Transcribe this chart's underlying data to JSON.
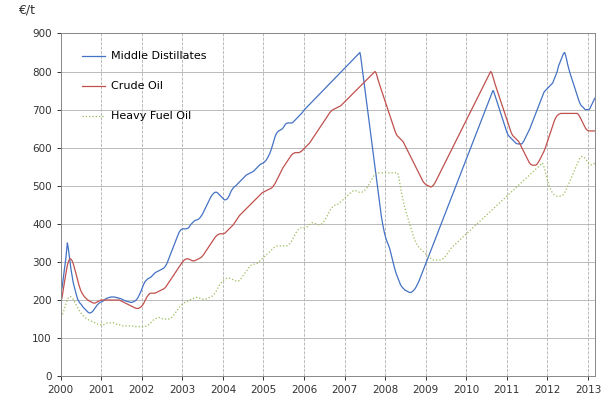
{
  "title": "€/t",
  "xlim": [
    2000.0,
    2013.17
  ],
  "ylim": [
    0,
    900
  ],
  "yticks": [
    0,
    100,
    200,
    300,
    400,
    500,
    600,
    700,
    800,
    900
  ],
  "xticks": [
    2000,
    2001,
    2002,
    2003,
    2004,
    2005,
    2006,
    2007,
    2008,
    2009,
    2010,
    2011,
    2012,
    2013
  ],
  "grid_color": "#b0b0b0",
  "background_color": "#ffffff",
  "line_colors": {
    "middle_distillates": "#4472c4",
    "crude_oil": "#c0504d",
    "heavy_fuel_oil": "#9bbb59"
  },
  "legend_labels": [
    "Middle Distillates",
    "Crude Oil",
    "Heavy Fuel Oil"
  ],
  "legend_labelspacing": 1.8,
  "md_v": [
    220,
    225,
    235,
    250,
    265,
    280,
    295,
    310,
    330,
    350,
    340,
    325,
    310,
    295,
    280,
    268,
    255,
    245,
    238,
    230,
    222,
    215,
    208,
    202,
    198,
    195,
    192,
    190,
    188,
    185,
    182,
    180,
    178,
    176,
    174,
    172,
    170,
    168,
    167,
    166,
    166,
    167,
    168,
    170,
    172,
    175,
    178,
    180,
    183,
    186,
    188,
    190,
    192,
    193,
    194,
    195,
    196,
    197,
    198,
    200,
    202,
    203,
    204,
    205,
    206,
    206,
    207,
    207,
    208,
    208,
    208,
    208,
    208,
    208,
    207,
    207,
    206,
    206,
    205,
    205,
    204,
    204,
    203,
    202,
    201,
    200,
    199,
    198,
    198,
    197,
    196,
    196,
    195,
    195,
    194,
    194,
    194,
    194,
    195,
    196,
    197,
    198,
    200,
    202,
    205,
    208,
    212,
    216,
    220,
    225,
    230,
    235,
    240,
    244,
    248,
    250,
    252,
    254,
    256,
    257,
    258,
    259,
    260,
    262,
    264,
    266,
    268,
    270,
    272,
    273,
    274,
    275,
    276,
    277,
    278,
    279,
    280,
    281,
    282,
    283,
    285,
    287,
    290,
    293,
    297,
    302,
    307,
    312,
    317,
    322,
    327,
    332,
    337,
    342,
    347,
    352,
    357,
    362,
    367,
    372,
    377,
    380,
    383,
    385,
    386,
    387,
    387,
    387,
    387,
    387,
    387,
    388,
    388,
    390,
    392,
    395,
    398,
    400,
    402,
    404,
    406,
    408,
    409,
    410,
    410,
    411,
    412,
    413,
    415,
    417,
    420,
    423,
    426,
    430,
    434,
    438,
    442,
    446,
    450,
    454,
    458,
    462,
    466,
    470,
    473,
    476,
    478,
    480,
    482,
    483,
    483,
    483,
    482,
    480,
    478,
    476,
    474,
    472,
    470,
    468,
    466,
    464,
    463,
    463,
    464,
    465,
    467,
    470,
    474,
    478,
    483,
    487,
    490,
    493,
    495,
    497,
    499,
    500,
    502,
    504,
    506,
    508,
    510,
    512,
    514,
    516,
    518,
    520,
    522,
    524,
    526,
    528,
    529,
    530,
    531,
    532,
    533,
    534,
    535,
    536,
    537,
    538,
    540,
    542,
    544,
    546,
    548,
    550,
    552,
    554,
    556,
    557,
    558,
    559,
    560,
    561,
    563,
    565,
    567,
    570,
    573,
    577,
    581,
    585,
    590,
    596,
    602,
    608,
    615,
    622,
    628,
    633,
    637,
    640,
    642,
    644,
    645,
    646,
    647,
    648,
    650,
    652,
    655,
    658,
    661,
    663,
    664,
    665,
    665,
    665,
    665,
    665,
    665,
    665,
    666,
    668,
    670,
    672,
    674,
    676,
    678,
    680,
    682,
    684,
    686,
    688,
    690,
    692,
    695,
    698,
    700,
    702,
    704,
    706,
    708,
    710,
    712,
    714,
    716,
    718,
    720,
    722,
    724,
    726,
    728,
    730,
    732,
    734,
    736,
    738,
    740,
    742,
    744,
    746,
    748,
    750,
    752,
    754,
    756,
    758,
    760,
    762,
    764,
    766,
    768,
    770,
    772,
    774,
    776,
    778,
    780,
    782,
    784,
    786,
    788,
    790,
    792,
    794,
    796,
    798,
    800,
    802,
    804,
    806,
    808,
    810,
    812,
    814,
    816,
    818,
    820,
    822,
    824,
    826,
    828,
    830,
    832,
    834,
    836,
    838,
    840,
    842,
    844,
    846,
    848,
    850,
    840,
    825,
    810,
    795,
    780,
    765,
    750,
    735,
    720,
    705,
    690,
    675,
    660,
    645,
    630,
    615,
    600,
    585,
    570,
    555,
    540,
    525,
    510,
    495,
    480,
    465,
    450,
    435,
    420,
    408,
    397,
    387,
    378,
    370,
    363,
    357,
    352,
    347,
    342,
    337,
    330,
    322,
    314,
    306,
    298,
    290,
    283,
    276,
    270,
    265,
    260,
    255,
    250,
    245,
    240,
    237,
    234,
    232,
    230,
    228,
    226,
    225,
    224,
    223,
    222,
    221,
    220,
    220,
    220,
    221,
    222,
    224,
    226,
    228,
    231,
    234,
    238,
    242,
    246,
    250,
    255,
    260,
    265,
    270,
    275,
    280,
    285,
    290,
    295,
    300,
    305,
    310,
    315,
    320,
    325,
    330,
    335,
    340,
    345,
    350,
    355,
    360,
    365,
    370,
    375,
    380,
    385,
    390,
    395,
    400,
    405,
    410,
    415,
    420,
    425,
    430,
    435,
    440,
    445,
    450,
    455,
    460,
    465,
    470,
    475,
    480,
    485,
    490,
    495,
    500,
    505,
    510,
    515,
    520,
    525,
    530,
    535,
    540,
    545,
    550,
    555,
    560,
    565,
    570,
    575,
    580,
    585,
    590,
    595,
    600,
    605,
    610,
    615,
    620,
    625,
    630,
    635,
    640,
    645,
    650,
    655,
    660,
    665,
    670,
    675,
    680,
    685,
    690,
    695,
    700,
    705,
    710,
    715,
    720,
    725,
    730,
    735,
    740,
    745,
    750,
    748,
    742,
    736,
    730,
    724,
    718,
    712,
    706,
    700,
    694,
    688,
    682,
    676,
    670,
    664,
    658,
    652,
    646,
    640,
    636,
    632,
    630,
    628,
    626,
    624,
    622,
    620,
    618,
    616,
    614,
    612,
    611,
    610,
    610,
    610,
    610,
    610,
    610,
    610,
    612,
    615,
    618,
    622,
    626,
    630,
    634,
    638,
    642,
    646,
    650,
    655,
    660,
    665,
    670,
    675,
    680,
    685,
    690,
    695,
    700,
    705,
    710,
    715,
    720,
    725,
    730,
    735,
    740,
    745,
    748,
    750,
    752,
    754,
    756,
    758,
    760,
    762,
    764,
    766,
    768,
    770,
    775,
    780,
    785,
    790,
    795,
    800,
    808,
    816,
    820,
    825,
    830,
    835,
    840,
    845,
    848,
    850,
    845,
    838,
    830,
    820,
    812,
    805,
    798,
    792,
    786,
    780,
    774,
    768,
    762,
    756,
    750,
    744,
    738,
    732,
    726,
    720,
    716,
    712,
    710,
    708,
    706,
    704,
    702,
    700,
    700,
    700,
    700,
    700,
    700,
    702,
    706,
    710,
    714,
    718,
    722,
    726,
    730
  ],
  "co_v": [
    195,
    200,
    210,
    222,
    235,
    248,
    260,
    272,
    283,
    293,
    300,
    305,
    308,
    308,
    306,
    303,
    298,
    292,
    285,
    278,
    270,
    262,
    254,
    246,
    239,
    233,
    227,
    222,
    218,
    215,
    212,
    209,
    207,
    205,
    203,
    201,
    200,
    198,
    197,
    196,
    195,
    194,
    193,
    192,
    192,
    192,
    193,
    194,
    195,
    196,
    197,
    198,
    199,
    200,
    200,
    200,
    200,
    200,
    200,
    200,
    200,
    200,
    200,
    200,
    200,
    200,
    200,
    200,
    200,
    200,
    200,
    200,
    200,
    200,
    200,
    200,
    200,
    200,
    199,
    198,
    197,
    196,
    195,
    194,
    193,
    192,
    191,
    190,
    189,
    188,
    187,
    186,
    185,
    184,
    183,
    182,
    181,
    180,
    179,
    178,
    178,
    178,
    178,
    179,
    180,
    181,
    183,
    185,
    188,
    191,
    195,
    199,
    203,
    207,
    210,
    213,
    215,
    217,
    218,
    218,
    218,
    218,
    218,
    218,
    218,
    219,
    220,
    221,
    222,
    223,
    224,
    225,
    226,
    227,
    228,
    229,
    230,
    232,
    234,
    237,
    240,
    243,
    246,
    249,
    252,
    255,
    258,
    261,
    264,
    267,
    270,
    273,
    276,
    279,
    282,
    285,
    288,
    291,
    294,
    297,
    300,
    302,
    304,
    306,
    307,
    308,
    308,
    308,
    308,
    307,
    306,
    305,
    304,
    303,
    303,
    303,
    303,
    304,
    305,
    306,
    307,
    308,
    309,
    310,
    311,
    313,
    315,
    317,
    320,
    323,
    326,
    329,
    332,
    335,
    338,
    341,
    344,
    347,
    350,
    353,
    356,
    359,
    362,
    365,
    367,
    369,
    371,
    372,
    373,
    374,
    374,
    374,
    374,
    374,
    374,
    375,
    376,
    378,
    380,
    382,
    384,
    386,
    388,
    390,
    392,
    394,
    396,
    398,
    401,
    404,
    407,
    410,
    413,
    416,
    419,
    422,
    424,
    426,
    428,
    430,
    432,
    434,
    436,
    438,
    440,
    442,
    444,
    446,
    448,
    450,
    452,
    454,
    456,
    458,
    460,
    462,
    464,
    466,
    468,
    470,
    472,
    474,
    476,
    478,
    480,
    482,
    483,
    484,
    485,
    486,
    487,
    488,
    489,
    490,
    491,
    492,
    493,
    494,
    496,
    498,
    501,
    504,
    507,
    511,
    515,
    519,
    523,
    527,
    531,
    535,
    539,
    543,
    547,
    550,
    553,
    556,
    559,
    562,
    565,
    568,
    571,
    574,
    577,
    580,
    582,
    584,
    585,
    586,
    587,
    587,
    587,
    587,
    587,
    587,
    588,
    589,
    590,
    592,
    594,
    596,
    598,
    600,
    602,
    604,
    606,
    608,
    610,
    612,
    615,
    618,
    621,
    624,
    627,
    630,
    633,
    636,
    639,
    642,
    645,
    648,
    651,
    654,
    657,
    660,
    663,
    666,
    669,
    672,
    675,
    678,
    681,
    684,
    687,
    690,
    693,
    695,
    697,
    699,
    700,
    701,
    702,
    703,
    704,
    705,
    706,
    707,
    708,
    709,
    710,
    712,
    714,
    716,
    718,
    720,
    722,
    724,
    726,
    728,
    730,
    732,
    734,
    736,
    738,
    740,
    742,
    744,
    746,
    748,
    750,
    752,
    754,
    756,
    758,
    760,
    762,
    764,
    766,
    768,
    770,
    772,
    774,
    776,
    778,
    780,
    782,
    784,
    786,
    788,
    790,
    792,
    794,
    796,
    798,
    800,
    798,
    793,
    786,
    779,
    772,
    766,
    760,
    754,
    748,
    742,
    736,
    730,
    724,
    718,
    712,
    706,
    700,
    694,
    688,
    682,
    676,
    670,
    664,
    658,
    652,
    646,
    640,
    636,
    632,
    630,
    628,
    626,
    624,
    622,
    620,
    618,
    616,
    612,
    608,
    604,
    600,
    596,
    592,
    588,
    584,
    580,
    576,
    572,
    568,
    564,
    560,
    556,
    552,
    548,
    544,
    540,
    536,
    532,
    528,
    524,
    520,
    516,
    512,
    509,
    507,
    505,
    503,
    502,
    501,
    500,
    499,
    498,
    497,
    497,
    498,
    500,
    502,
    505,
    508,
    512,
    516,
    520,
    524,
    528,
    532,
    536,
    540,
    544,
    548,
    552,
    556,
    560,
    564,
    568,
    572,
    576,
    580,
    584,
    588,
    592,
    596,
    600,
    604,
    608,
    612,
    616,
    620,
    624,
    628,
    632,
    636,
    640,
    644,
    648,
    652,
    656,
    660,
    664,
    668,
    672,
    676,
    680,
    684,
    688,
    692,
    696,
    700,
    704,
    708,
    712,
    716,
    720,
    724,
    728,
    732,
    736,
    740,
    744,
    748,
    752,
    756,
    760,
    764,
    768,
    772,
    776,
    780,
    784,
    788,
    792,
    796,
    800,
    798,
    793,
    786,
    779,
    772,
    766,
    760,
    754,
    748,
    742,
    736,
    730,
    724,
    718,
    712,
    706,
    700,
    694,
    688,
    682,
    676,
    670,
    664,
    658,
    652,
    646,
    640,
    636,
    632,
    630,
    628,
    626,
    624,
    622,
    620,
    618,
    616,
    612,
    608,
    604,
    600,
    596,
    592,
    588,
    584,
    580,
    576,
    572,
    568,
    564,
    560,
    558,
    556,
    555,
    554,
    554,
    554,
    554,
    554,
    555,
    557,
    560,
    563,
    566,
    570,
    574,
    578,
    582,
    586,
    590,
    595,
    600,
    606,
    612,
    618,
    624,
    630,
    636,
    642,
    648,
    654,
    660,
    666,
    672,
    676,
    680,
    683,
    685,
    687,
    688,
    689,
    690,
    690,
    690,
    690,
    690,
    690,
    690,
    690,
    690,
    690,
    690,
    690,
    690,
    690,
    690,
    690,
    690,
    690,
    690,
    690,
    690,
    690,
    690,
    688,
    685,
    682,
    678,
    674,
    670,
    666,
    662,
    658,
    654,
    650,
    648,
    646,
    645,
    644,
    644,
    644,
    644,
    644,
    644,
    644,
    644,
    644
  ],
  "hfo_v": [
    155,
    158,
    162,
    167,
    173,
    180,
    187,
    194,
    200,
    205,
    208,
    209,
    209,
    208,
    206,
    203,
    199,
    195,
    191,
    187,
    183,
    179,
    175,
    171,
    168,
    165,
    162,
    160,
    158,
    156,
    154,
    152,
    150,
    149,
    148,
    147,
    146,
    145,
    144,
    143,
    142,
    141,
    140,
    139,
    138,
    137,
    136,
    135,
    135,
    135,
    135,
    135,
    135,
    136,
    137,
    138,
    139,
    140,
    140,
    140,
    140,
    140,
    140,
    140,
    140,
    140,
    139,
    138,
    137,
    136,
    135,
    135,
    135,
    134,
    133,
    132,
    132,
    132,
    132,
    132,
    132,
    132,
    132,
    132,
    132,
    132,
    132,
    132,
    132,
    131,
    130,
    130,
    130,
    130,
    130,
    130,
    130,
    130,
    130,
    130,
    130,
    130,
    130,
    130,
    131,
    132,
    133,
    134,
    136,
    138,
    140,
    142,
    145,
    147,
    149,
    150,
    151,
    152,
    153,
    154,
    154,
    154,
    153,
    152,
    151,
    150,
    150,
    150,
    150,
    150,
    150,
    150,
    150,
    151,
    152,
    153,
    155,
    157,
    160,
    163,
    166,
    169,
    172,
    175,
    178,
    181,
    184,
    186,
    188,
    190,
    192,
    193,
    194,
    195,
    196,
    197,
    198,
    199,
    200,
    201,
    202,
    203,
    204,
    205,
    206,
    207,
    207,
    207,
    207,
    206,
    205,
    204,
    203,
    202,
    202,
    202,
    202,
    202,
    203,
    204,
    205,
    206,
    207,
    208,
    209,
    210,
    212,
    214,
    217,
    220,
    223,
    227,
    231,
    235,
    239,
    242,
    245,
    248,
    250,
    252,
    254,
    255,
    256,
    257,
    258,
    258,
    258,
    257,
    256,
    255,
    254,
    253,
    252,
    251,
    250,
    250,
    250,
    250,
    251,
    253,
    255,
    258,
    261,
    264,
    267,
    270,
    273,
    276,
    279,
    282,
    285,
    288,
    290,
    292,
    293,
    294,
    294,
    294,
    294,
    295,
    296,
    298,
    300,
    302,
    304,
    306,
    308,
    310,
    312,
    314,
    316,
    318,
    320,
    322,
    324,
    326,
    328,
    330,
    332,
    334,
    336,
    338,
    340,
    341,
    342,
    342,
    342,
    342,
    342,
    342,
    342,
    342,
    342,
    342,
    342,
    342,
    342,
    343,
    344,
    346,
    348,
    351,
    354,
    358,
    362,
    366,
    370,
    374,
    378,
    381,
    384,
    386,
    388,
    389,
    390,
    390,
    390,
    390,
    390,
    390,
    391,
    392,
    394,
    396,
    398,
    400,
    402,
    403,
    403,
    403,
    402,
    401,
    400,
    399,
    398,
    398,
    398,
    398,
    399,
    400,
    402,
    404,
    407,
    410,
    414,
    418,
    422,
    426,
    430,
    434,
    438,
    441,
    444,
    446,
    448,
    449,
    450,
    450,
    451,
    452,
    453,
    455,
    457,
    459,
    461,
    463,
    465,
    467,
    469,
    471,
    473,
    475,
    477,
    479,
    481,
    483,
    485,
    486,
    487,
    487,
    487,
    487,
    486,
    485,
    484,
    483,
    483,
    483,
    483,
    484,
    485,
    487,
    489,
    491,
    494,
    497,
    500,
    504,
    508,
    512,
    516,
    520,
    524,
    527,
    530,
    532,
    533,
    534,
    534,
    534,
    534,
    534,
    534,
    534,
    534,
    534,
    534,
    534,
    534,
    534,
    534,
    534,
    534,
    534,
    534,
    534,
    534,
    534,
    534,
    534,
    534,
    534,
    534,
    525,
    513,
    501,
    489,
    478,
    467,
    457,
    448,
    440,
    432,
    425,
    418,
    411,
    404,
    397,
    390,
    383,
    376,
    369,
    363,
    357,
    352,
    348,
    344,
    341,
    338,
    336,
    334,
    332,
    330,
    328,
    326,
    324,
    322,
    320,
    318,
    316,
    314,
    312,
    310,
    308,
    307,
    306,
    305,
    305,
    305,
    305,
    305,
    305,
    305,
    305,
    305,
    306,
    307,
    308,
    310,
    312,
    314,
    317,
    320,
    323,
    326,
    329,
    332,
    335,
    338,
    340,
    342,
    344,
    346,
    348,
    350,
    352,
    354,
    356,
    358,
    360,
    362,
    364,
    366,
    368,
    370,
    372,
    374,
    376,
    378,
    380,
    382,
    384,
    386,
    388,
    390,
    392,
    394,
    396,
    398,
    400,
    402,
    404,
    406,
    408,
    410,
    412,
    414,
    416,
    418,
    420,
    422,
    424,
    426,
    428,
    430,
    432,
    434,
    436,
    438,
    440,
    442,
    444,
    446,
    448,
    450,
    452,
    454,
    456,
    458,
    460,
    462,
    464,
    466,
    468,
    470,
    472,
    474,
    476,
    478,
    480,
    482,
    484,
    486,
    488,
    490,
    492,
    494,
    496,
    498,
    500,
    502,
    504,
    506,
    508,
    510,
    512,
    514,
    516,
    518,
    520,
    522,
    524,
    526,
    528,
    530,
    532,
    534,
    536,
    538,
    540,
    542,
    544,
    546,
    548,
    550,
    552,
    554,
    556,
    558,
    560,
    555,
    548,
    540,
    532,
    524,
    516,
    508,
    501,
    495,
    490,
    486,
    482,
    479,
    477,
    475,
    474,
    473,
    473,
    473,
    473,
    473,
    473,
    473,
    474,
    476,
    479,
    482,
    486,
    490,
    495,
    500,
    505,
    510,
    515,
    520,
    525,
    530,
    535,
    540,
    545,
    550,
    555,
    560,
    565,
    570,
    574,
    576,
    577,
    577,
    576,
    574,
    572,
    569,
    566,
    563,
    560,
    558,
    556,
    555,
    555,
    555,
    556,
    558,
    560
  ]
}
